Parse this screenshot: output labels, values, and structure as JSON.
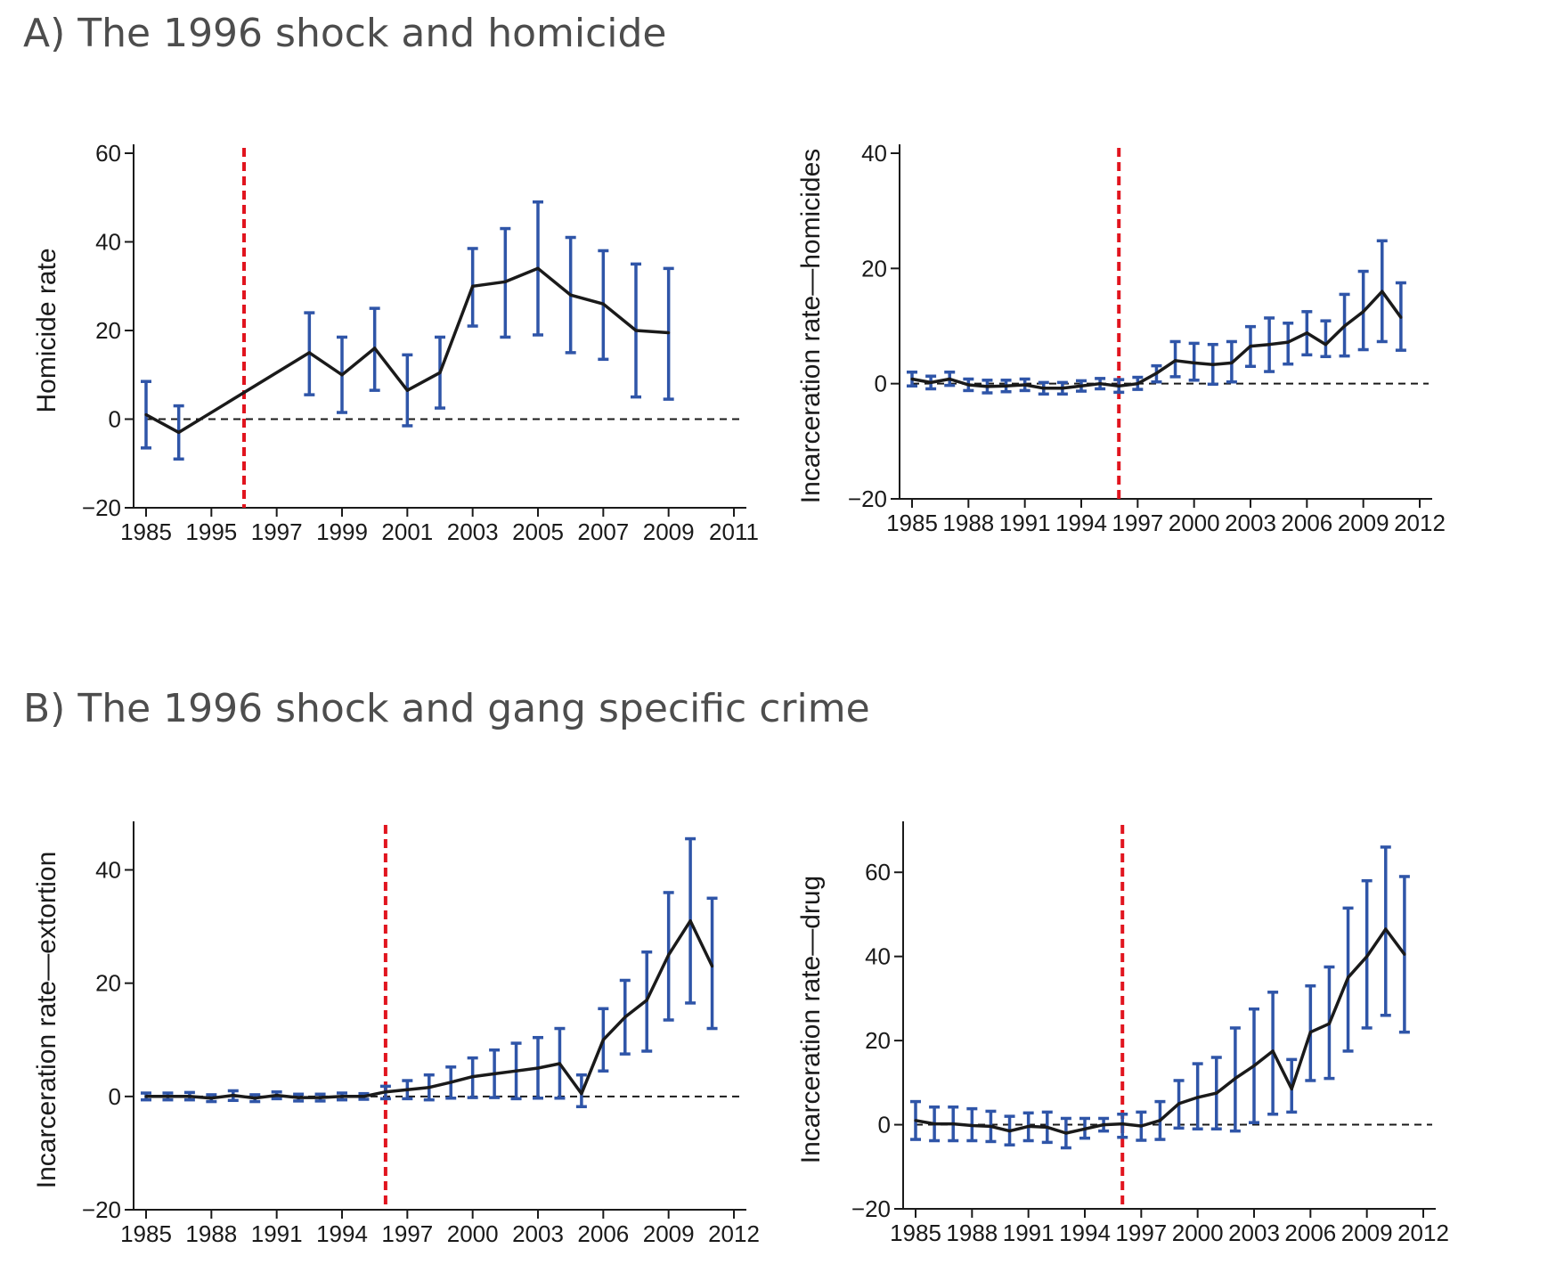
{
  "panels": {
    "a": {
      "title": "A) The 1996 shock and homicide"
    },
    "b": {
      "title": "B) The 1996 shock and gang specific crime"
    }
  },
  "colors": {
    "line": "#1a1a1a",
    "error_bar": "#2f55a8",
    "shock_line": "#e1141e",
    "zero_line": "#1a1a1a",
    "axis": "#1a1a1a"
  },
  "chart_data": [
    {
      "type": "line",
      "panel": "A",
      "ylabel": "Homicide rate",
      "xlabel": "",
      "ylim": [
        -20,
        60
      ],
      "yticks": [
        -20,
        0,
        20,
        40,
        60
      ],
      "xticks": [
        "1985",
        "1995",
        "1997",
        "1999",
        "2001",
        "2003",
        "2005",
        "2007",
        "2009",
        "2011"
      ],
      "xlim_index": [
        0,
        9
      ],
      "shock_x_index": 1.5,
      "zero_line": true,
      "points_index": [
        0,
        0.5,
        2.5,
        3,
        3.5,
        4,
        4.5,
        5,
        5.5,
        6,
        6.5,
        7,
        7.5,
        8,
        8.5
      ],
      "points_year": [
        1985,
        1986,
        1999,
        2000,
        2001,
        2002,
        2003,
        2004,
        2005,
        2006,
        2007,
        2008,
        2009,
        2010,
        2011
      ],
      "values": [
        1,
        -3,
        15,
        10,
        16,
        6.5,
        10.5,
        30,
        31,
        34,
        28,
        26,
        20,
        19.5,
        null
      ],
      "ci_low": [
        -6.5,
        -9,
        5.5,
        1.5,
        6.5,
        -1.5,
        2.5,
        21,
        18.5,
        19,
        15,
        13.5,
        5,
        4.5,
        null
      ],
      "ci_high": [
        8.5,
        3,
        24,
        18.5,
        25,
        14.5,
        18.5,
        38.5,
        43,
        49,
        41,
        38,
        35,
        34,
        null
      ]
    },
    {
      "type": "line",
      "panel": "A",
      "ylabel": "Incarceration rate—homicides",
      "xlabel": "",
      "ylim": [
        -20,
        40
      ],
      "yticks": [
        -20,
        0,
        20,
        40
      ],
      "xticks": [
        "1985",
        "1988",
        "1991",
        "1994",
        "1997",
        "2000",
        "2003",
        "2006",
        "2009",
        "2012"
      ],
      "xlim": [
        1985,
        2012
      ],
      "shock_x": 1996,
      "zero_line": true,
      "x": [
        1985,
        1986,
        1987,
        1988,
        1989,
        1990,
        1991,
        1992,
        1993,
        1994,
        1995,
        1996,
        1997,
        1998,
        1999,
        2000,
        2001,
        2002,
        2003,
        2004,
        2005,
        2006,
        2007,
        2008,
        2009,
        2010,
        2011
      ],
      "values": [
        0.8,
        0.2,
        0.8,
        -0.2,
        -0.5,
        -0.4,
        -0.2,
        -0.8,
        -0.8,
        -0.4,
        0,
        -0.4,
        0,
        1.8,
        4,
        3.6,
        3.3,
        3.6,
        6.5,
        6.8,
        7.2,
        8.8,
        6.8,
        10,
        12.5,
        16,
        11.5
      ],
      "ci_low": [
        -0.4,
        -0.9,
        -0.3,
        -1.2,
        -1.6,
        -1.4,
        -1.2,
        -1.8,
        -1.8,
        -1.3,
        -0.9,
        -1.5,
        -1,
        0.3,
        1.2,
        0.6,
        -0.1,
        0.3,
        3,
        2.1,
        3.4,
        5,
        4.7,
        4.8,
        5.9,
        7.3,
        5.8
      ],
      "ci_high": [
        2,
        1.3,
        2,
        0.8,
        0.6,
        0.6,
        0.8,
        0.2,
        0.2,
        0.5,
        0.9,
        0.7,
        1.1,
        3.1,
        7.3,
        7,
        6.8,
        7.3,
        9.9,
        11.4,
        10.5,
        12.5,
        10.9,
        15.5,
        19.5,
        24.8,
        17.5
      ]
    },
    {
      "type": "line",
      "panel": "B",
      "ylabel": "Incarceration rate—extortion",
      "xlabel": "",
      "ylim": [
        -20,
        47
      ],
      "yticks": [
        -20,
        0,
        20,
        40
      ],
      "xticks": [
        "1985",
        "1988",
        "1991",
        "1994",
        "1997",
        "2000",
        "2003",
        "2006",
        "2009",
        "2012"
      ],
      "xlim": [
        1985,
        2012
      ],
      "shock_x": 1996,
      "zero_line": true,
      "x": [
        1985,
        1986,
        1987,
        1988,
        1989,
        1990,
        1991,
        1992,
        1993,
        1994,
        1995,
        1996,
        1997,
        1998,
        1999,
        2000,
        2001,
        2002,
        2003,
        2004,
        2005,
        2006,
        2007,
        2008,
        2009,
        2010,
        2011
      ],
      "values": [
        0,
        0,
        0,
        -0.3,
        0.2,
        -0.3,
        0.2,
        -0.2,
        -0.2,
        0,
        0,
        0.8,
        1.2,
        1.6,
        2.5,
        3.5,
        4,
        4.5,
        5,
        5.8,
        0.5,
        10,
        14,
        17,
        25,
        31,
        23
      ],
      "ci_low": [
        -0.6,
        -0.6,
        -0.6,
        -0.9,
        -0.7,
        -0.9,
        -0.4,
        -0.8,
        -0.8,
        -0.6,
        -0.5,
        -0.4,
        -0.4,
        -0.6,
        -0.3,
        -0.2,
        -0.2,
        -0.4,
        -0.3,
        -0.3,
        -1.8,
        4.5,
        7.5,
        8,
        13.5,
        16.5,
        12
      ],
      "ci_high": [
        0.6,
        0.6,
        0.7,
        0.3,
        1,
        0.3,
        0.8,
        0.4,
        0.4,
        0.6,
        0.5,
        1.8,
        2.8,
        3.8,
        5.2,
        6.8,
        8.2,
        9.4,
        10.4,
        12,
        3.8,
        15.5,
        20.5,
        25.5,
        36,
        45.5,
        35
      ]
    },
    {
      "type": "line",
      "panel": "B",
      "ylabel": "Incarceration rate—drug",
      "xlabel": "",
      "ylim": [
        -20,
        70
      ],
      "yticks": [
        -20,
        0,
        20,
        40,
        60
      ],
      "xticks": [
        "1985",
        "1988",
        "1991",
        "1994",
        "1997",
        "2000",
        "2003",
        "2006",
        "2009",
        "2012"
      ],
      "xlim": [
        1985,
        2012
      ],
      "shock_x": 1996,
      "zero_line": true,
      "x": [
        1985,
        1986,
        1987,
        1988,
        1989,
        1990,
        1991,
        1992,
        1993,
        1994,
        1995,
        1996,
        1997,
        1998,
        1999,
        2000,
        2001,
        2002,
        2003,
        2004,
        2005,
        2006,
        2007,
        2008,
        2009,
        2010,
        2011
      ],
      "values": [
        1,
        0.2,
        0.2,
        -0.2,
        -0.4,
        -1.5,
        -0.4,
        -0.6,
        -2,
        -1,
        0,
        0.2,
        -0.3,
        1,
        5,
        6.5,
        7.5,
        11,
        14,
        17.5,
        8.5,
        22,
        24,
        35,
        40,
        46.5,
        40.5
      ],
      "ci_low": [
        -3.5,
        -3.8,
        -3.8,
        -3.8,
        -4,
        -4.8,
        -3.8,
        -4.2,
        -5.5,
        -3.2,
        -1.5,
        -3,
        -3.7,
        -3.5,
        -0.8,
        -1,
        -1,
        -1.5,
        0.5,
        2.5,
        3,
        10.5,
        11,
        17.5,
        23,
        26,
        22
      ],
      "ci_high": [
        5.5,
        4.2,
        4.2,
        3.8,
        3.2,
        2,
        2.8,
        3,
        1.5,
        1.5,
        1.5,
        2.5,
        3,
        5.5,
        10.5,
        14.5,
        16,
        23,
        27.5,
        31.5,
        15.5,
        33,
        37.5,
        51.5,
        58,
        66,
        59
      ]
    }
  ]
}
